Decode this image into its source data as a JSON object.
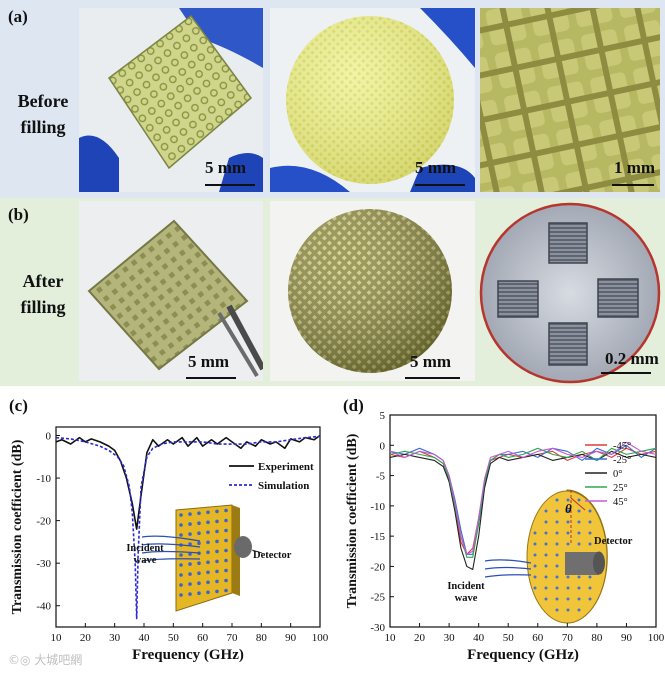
{
  "panel_a": {
    "label": "(a)",
    "row_title_line1": "Before",
    "row_title_line2": "filling",
    "scales": [
      "5 mm",
      "5 mm",
      "1 mm"
    ]
  },
  "panel_b": {
    "label": "(b)",
    "row_title_line1": "After",
    "row_title_line2": "filling",
    "scales": [
      "5 mm",
      "5 mm",
      "0.2 mm"
    ]
  },
  "chart_data": [
    {
      "panel": "(c)",
      "type": "line",
      "xlabel": "Frequency (GHz)",
      "ylabel": "Transmission coefficient (dB)",
      "xlim": [
        10,
        100
      ],
      "ylim": [
        -45,
        2
      ],
      "xticks": [
        10,
        20,
        30,
        40,
        50,
        60,
        70,
        80,
        90,
        100
      ],
      "yticks": [
        0,
        -10,
        -20,
        -30,
        -40
      ],
      "legend_position": "right",
      "annotations": [
        "Incident wave",
        "Detector"
      ],
      "series": [
        {
          "name": "Experiment",
          "color": "#111111",
          "style": "solid",
          "x": [
            10,
            12,
            15,
            18,
            20,
            22,
            25,
            28,
            30,
            32,
            34,
            36,
            37.5,
            39,
            41,
            43,
            45,
            48,
            50,
            53,
            55,
            58,
            60,
            63,
            65,
            68,
            70,
            73,
            75,
            78,
            80,
            83,
            85,
            88,
            90,
            93,
            95,
            98,
            100
          ],
          "y": [
            -1.5,
            -1.0,
            -2.0,
            -0.5,
            -1.5,
            -0.8,
            -1.5,
            -2.5,
            -3.5,
            -6,
            -10,
            -16,
            -22,
            -14,
            -4,
            -1.0,
            -2.5,
            -1.0,
            -2.0,
            -0.5,
            -2.5,
            -0.5,
            -2.5,
            -1.0,
            -2.0,
            -0.5,
            -1.5,
            -3.0,
            -1.5,
            -2.5,
            -1.0,
            -2.0,
            -1.5,
            -3.0,
            -0.8,
            -1.5,
            -0.5,
            -1.0,
            0.0
          ]
        },
        {
          "name": "Simulation",
          "color": "#2a2ad4",
          "style": "dashed",
          "x": [
            10,
            15,
            20,
            25,
            28,
            31,
            33,
            35,
            36,
            37,
            37.5,
            38,
            39,
            41,
            43,
            46,
            50,
            55,
            60,
            65,
            70,
            75,
            80,
            85,
            90,
            95,
            100
          ],
          "y": [
            -0.5,
            -0.8,
            -1.5,
            -2.5,
            -3.5,
            -5,
            -7,
            -12,
            -18,
            -30,
            -43,
            -28,
            -12,
            -5,
            -3,
            -2,
            -1.5,
            -1.5,
            -1.5,
            -2.0,
            -2.0,
            -2.0,
            -1.5,
            -1.5,
            -1.0,
            -0.5,
            -0.2
          ]
        }
      ]
    },
    {
      "panel": "(d)",
      "type": "line",
      "xlabel": "Frequency (GHz)",
      "ylabel": "Transmission coefficient (dB)",
      "xlim": [
        10,
        100
      ],
      "ylim": [
        -30,
        5
      ],
      "xticks": [
        10,
        20,
        30,
        40,
        50,
        60,
        70,
        80,
        90,
        100
      ],
      "yticks": [
        5,
        0,
        -5,
        -10,
        -15,
        -20,
        -25,
        -30
      ],
      "legend_position": "top-right",
      "annotations": [
        "θ",
        "Detector",
        "Incident wave"
      ],
      "series": [
        {
          "name": "-45°",
          "color": "#e23b3b",
          "x": [
            10,
            15,
            20,
            25,
            28,
            30,
            32,
            34,
            36,
            38,
            40,
            42,
            44,
            47,
            50,
            55,
            60,
            65,
            70,
            75,
            80,
            85,
            90,
            95,
            100
          ],
          "y": [
            -1.5,
            -2.0,
            -1.0,
            -2.0,
            -3.0,
            -6,
            -10,
            -16,
            -18,
            -17,
            -12,
            -6,
            -2.5,
            -2.0,
            -1.5,
            -2.0,
            -1.5,
            -1.0,
            -2.5,
            -1.5,
            -1.0,
            -2.0,
            -0.5,
            -1.5,
            -1.0
          ]
        },
        {
          "name": "-25°",
          "color": "#3a6fd4",
          "x": [
            10,
            15,
            20,
            25,
            28,
            30,
            32,
            34,
            36,
            38,
            40,
            42,
            44,
            47,
            50,
            55,
            60,
            65,
            70,
            75,
            80,
            85,
            90,
            95,
            100
          ],
          "y": [
            -1.0,
            -1.5,
            -0.5,
            -1.5,
            -2.5,
            -5,
            -9,
            -14,
            -18,
            -18,
            -13,
            -7,
            -2.5,
            -1.5,
            -1.5,
            -1.0,
            -2.0,
            -0.5,
            -1.0,
            -2.5,
            -0.5,
            -1.5,
            0.0,
            -2.0,
            -0.5
          ]
        },
        {
          "name": "0°",
          "color": "#222222",
          "x": [
            10,
            15,
            20,
            25,
            28,
            30,
            32,
            34,
            36,
            38,
            40,
            42,
            44,
            47,
            50,
            55,
            60,
            65,
            70,
            75,
            80,
            85,
            90,
            95,
            100
          ],
          "y": [
            -2.0,
            -1.5,
            -2.0,
            -2.5,
            -3.5,
            -6,
            -11,
            -17,
            -20,
            -20.5,
            -15,
            -7,
            -3,
            -2.0,
            -2.5,
            -2.0,
            -1.5,
            -2.5,
            -2.0,
            -1.5,
            -2.5,
            -1.0,
            -2.0,
            -1.5,
            -2.0
          ]
        },
        {
          "name": "25°",
          "color": "#2fa84f",
          "x": [
            10,
            15,
            20,
            25,
            28,
            30,
            32,
            34,
            36,
            38,
            40,
            42,
            44,
            47,
            50,
            55,
            60,
            65,
            70,
            75,
            80,
            85,
            90,
            95,
            100
          ],
          "y": [
            -1.5,
            -1.0,
            -1.5,
            -2.0,
            -3.0,
            -5.5,
            -10,
            -15,
            -18.5,
            -18.5,
            -13,
            -6,
            -2.5,
            -1.5,
            -2.0,
            -1.5,
            -0.5,
            -1.5,
            -2.0,
            -1.0,
            -2.5,
            -0.5,
            -1.5,
            -1.0,
            -0.5
          ]
        },
        {
          "name": "45°",
          "color": "#c25bd6",
          "x": [
            10,
            15,
            20,
            25,
            28,
            30,
            32,
            34,
            36,
            38,
            40,
            42,
            44,
            47,
            50,
            55,
            60,
            65,
            70,
            75,
            80,
            85,
            90,
            95,
            100
          ],
          "y": [
            -1.0,
            -2.0,
            -1.0,
            -1.5,
            -2.5,
            -5,
            -9.5,
            -15,
            -18,
            -17.5,
            -12,
            -5.5,
            -2.0,
            -1.5,
            -1.0,
            -2.0,
            -1.0,
            -0.5,
            -1.5,
            -2.0,
            -1.0,
            -1.5,
            0.5,
            -1.0,
            -1.5
          ]
        }
      ]
    }
  ],
  "watermark": "©◎ 大城吧網"
}
